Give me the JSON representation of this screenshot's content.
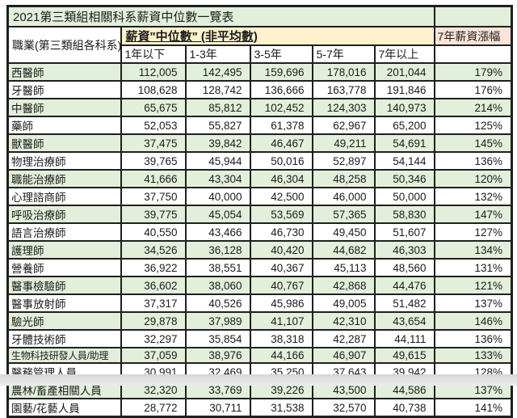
{
  "title": "2021第三類組相關科系薪資中位數一覽表",
  "header": {
    "occupation_label": "職業(第三類組各科系)",
    "salary_header": "薪資\"中位數\" (非平均數)",
    "growth_header": "7年薪資漲幅",
    "experience_columns": [
      "1年以下",
      "1-3年",
      "3-5年",
      "5-7年",
      "7年以上"
    ]
  },
  "colors": {
    "row_green": "#e2efda",
    "header_cream": "#fff2cc",
    "growth_pink": "#fce4d6",
    "border": "#1f1f1f"
  },
  "chart_data": {
    "type": "table",
    "title": "2021第三類組相關科系薪資中位數一覽表",
    "columns": [
      "職業(第三類組各科系)",
      "1年以下",
      "1-3年",
      "3-5年",
      "5-7年",
      "7年以上",
      "7年薪資漲幅"
    ],
    "rows": [
      {
        "name": "西醫師",
        "values": [
          "112,005",
          "142,495",
          "159,696",
          "178,016",
          "201,044"
        ],
        "growth": "179%"
      },
      {
        "name": "牙醫師",
        "values": [
          "108,628",
          "128,742",
          "136,666",
          "163,778",
          "191,846"
        ],
        "growth": "176%"
      },
      {
        "name": "中醫師",
        "values": [
          "65,675",
          "85,812",
          "102,452",
          "124,303",
          "140,973"
        ],
        "growth": "214%"
      },
      {
        "name": "藥師",
        "values": [
          "52,053",
          "55,827",
          "61,378",
          "62,967",
          "65,200"
        ],
        "growth": "125%"
      },
      {
        "name": "獸醫師",
        "values": [
          "37,475",
          "39,842",
          "46,467",
          "49,211",
          "54,691"
        ],
        "growth": "145%"
      },
      {
        "name": "物理治療師",
        "values": [
          "39,765",
          "45,944",
          "50,016",
          "52,897",
          "54,144"
        ],
        "growth": "136%"
      },
      {
        "name": "職能治療師",
        "values": [
          "41,666",
          "43,304",
          "46,304",
          "48,258",
          "50,346"
        ],
        "growth": "120%"
      },
      {
        "name": "心理諮商師",
        "values": [
          "37,750",
          "40,000",
          "42,500",
          "46,000",
          "50,000"
        ],
        "growth": "132%"
      },
      {
        "name": "呼吸治療師",
        "values": [
          "39,775",
          "45,054",
          "53,569",
          "57,365",
          "58,830"
        ],
        "growth": "147%"
      },
      {
        "name": "語言治療師",
        "values": [
          "40,550",
          "43,466",
          "46,730",
          "49,450",
          "51,607"
        ],
        "growth": "127%"
      },
      {
        "name": "護理師",
        "values": [
          "34,526",
          "36,128",
          "40,420",
          "44,682",
          "46,303"
        ],
        "growth": "134%"
      },
      {
        "name": "營養師",
        "values": [
          "36,922",
          "38,551",
          "40,367",
          "45,113",
          "48,560"
        ],
        "growth": "131%"
      },
      {
        "name": "醫事檢驗師",
        "values": [
          "36,602",
          "38,060",
          "40,767",
          "42,868",
          "44,476"
        ],
        "growth": "121%"
      },
      {
        "name": "醫事放射師",
        "values": [
          "37,317",
          "40,526",
          "45,986",
          "49,005",
          "51,482"
        ],
        "growth": "137%"
      },
      {
        "name": "驗光師",
        "values": [
          "29,878",
          "37,989",
          "41,107",
          "42,310",
          "43,654"
        ],
        "growth": "146%"
      },
      {
        "name": "牙體技術師",
        "values": [
          "32,297",
          "35,854",
          "38,318",
          "42,287",
          "44,111"
        ],
        "growth": "136%"
      },
      {
        "name": "生物科技研發人員/助理",
        "values": [
          "37,059",
          "38,976",
          "44,166",
          "46,907",
          "49,615"
        ],
        "growth": "133%"
      },
      {
        "name": "醫務管理人員",
        "values": [
          "30,991",
          "32,469",
          "35,250",
          "37,643",
          "39,942"
        ],
        "growth": "128%"
      },
      {
        "name": "農林/畜產相關人員",
        "values": [
          "32,320",
          "33,769",
          "39,226",
          "43,500",
          "44,586"
        ],
        "growth": "137%"
      },
      {
        "name": "園藝/花藝人員",
        "values": [
          "28,772",
          "30,711",
          "31,538",
          "32,570",
          "40,738"
        ],
        "growth": "141%"
      }
    ]
  }
}
